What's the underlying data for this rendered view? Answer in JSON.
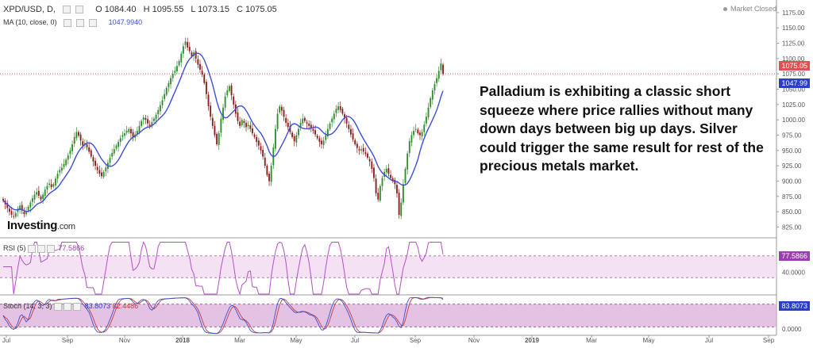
{
  "header": {
    "symbol": "XPD/USD, D,",
    "open": "O 1084.40",
    "high": "H 1095.55",
    "low": "L 1073.15",
    "close": "C 1075.05",
    "ma_label": "MA (10, close, 0)",
    "ma_value": "1047.9940",
    "status": "Market Closed"
  },
  "logo": {
    "name": "Investing",
    "suffix": ".com"
  },
  "note": "Palladium is exhibiting a classic short squeeze where price rallies without many down days between big up days. Silver could trigger the same result for rest of the precious metals market.",
  "tags": {
    "price": "1075.05",
    "ma": "1047.99",
    "rsi": "77.5866",
    "stoch_k": "83.8073"
  },
  "rsi_pane": {
    "label": "RSI (5)",
    "value": "77.5866"
  },
  "stoch_pane": {
    "label": "Stoch (14, 3, 3)",
    "k": "83.8073",
    "d": "82.4486"
  },
  "colors": {
    "up": "#2e8b2e",
    "down": "#8b1a1a",
    "ma": "#3b4fd6",
    "rsi": "#b44fc4",
    "stoch_k": "#3b4fd6",
    "stoch_d": "#c43b3b",
    "band": "#f0d4f0",
    "price_line": "#e05050",
    "ma_tag": "#2a3fc9"
  },
  "chart_data": [
    {
      "type": "candlestick",
      "title": "XPD/USD, D",
      "x_tick_labels": [
        "Jul",
        "Sep",
        "Nov",
        "2018",
        "Mar",
        "May",
        "Jul",
        "Sep",
        "Nov",
        "2019",
        "Mar",
        "May",
        "Jul",
        "Sep"
      ],
      "y_tick_labels": [
        "825.00",
        "850.00",
        "875.00",
        "900.00",
        "925.00",
        "950.00",
        "975.00",
        "1000.00",
        "1025.00",
        "1050.00",
        "1075.00",
        "1100.00",
        "1125.00",
        "1150.00",
        "1175.00"
      ],
      "ylim": [
        810,
        1180
      ],
      "closes": [
        868,
        862,
        856,
        850,
        845,
        842,
        848,
        855,
        860,
        852,
        846,
        850,
        858,
        865,
        872,
        878,
        882,
        876,
        870,
        878,
        886,
        892,
        896,
        890,
        895,
        904,
        912,
        918,
        922,
        928,
        935,
        942,
        950,
        960,
        972,
        980,
        974,
        966,
        958,
        962,
        955,
        948,
        940,
        932,
        925,
        918,
        912,
        908,
        915,
        922,
        930,
        938,
        946,
        952,
        958,
        964,
        970,
        975,
        978,
        982,
        985,
        978,
        972,
        976,
        982,
        990,
        998,
        1004,
        1000,
        994,
        990,
        996,
        1002,
        1008,
        1016,
        1024,
        1032,
        1042,
        1052,
        1060,
        1068,
        1075,
        1080,
        1088,
        1096,
        1108,
        1120,
        1128,
        1118,
        1112,
        1104,
        1110,
        1100,
        1090,
        1082,
        1074,
        1060,
        1042,
        1022,
        1005,
        990,
        975,
        960,
        978,
        1002,
        1020,
        1038,
        1048,
        1055,
        1040,
        1025,
        1010,
        998,
        990,
        1000,
        995,
        988,
        992,
        985,
        978,
        972,
        964,
        958,
        950,
        940,
        925,
        910,
        900,
        925,
        955,
        985,
        1010,
        1022,
        1015,
        1005,
        995,
        988,
        980,
        972,
        965,
        975,
        985,
        995,
        1002,
        998,
        994,
        990,
        986,
        982,
        976,
        970,
        964,
        960,
        966,
        975,
        985,
        994,
        1002,
        1010,
        1018,
        1022,
        1016,
        1010,
        1002,
        994,
        985,
        976,
        968,
        960,
        954,
        950,
        952,
        948,
        944,
        938,
        932,
        920,
        905,
        880,
        870,
        892,
        905,
        915,
        920,
        912,
        905,
        900,
        895,
        880,
        845,
        865,
        895,
        920,
        945,
        965,
        975,
        982,
        985,
        978,
        975,
        980,
        992,
        1005,
        1020,
        1035,
        1048,
        1058,
        1068,
        1080,
        1092,
        1075
      ]
    },
    {
      "type": "line",
      "series_label": "MA (10, close, 0)",
      "last_value": 1047.994
    },
    {
      "type": "line",
      "series_label": "RSI (5)",
      "y_tick_labels": [
        "40.0000"
      ],
      "band": [
        30,
        70
      ],
      "last_value": 77.5866
    },
    {
      "type": "line",
      "series_label": "Stoch (14, 3, 3)",
      "y_tick_labels": [
        "0.0000"
      ],
      "band": [
        20,
        80
      ],
      "last_values": {
        "k": 83.8073,
        "d": 82.4486
      }
    }
  ]
}
